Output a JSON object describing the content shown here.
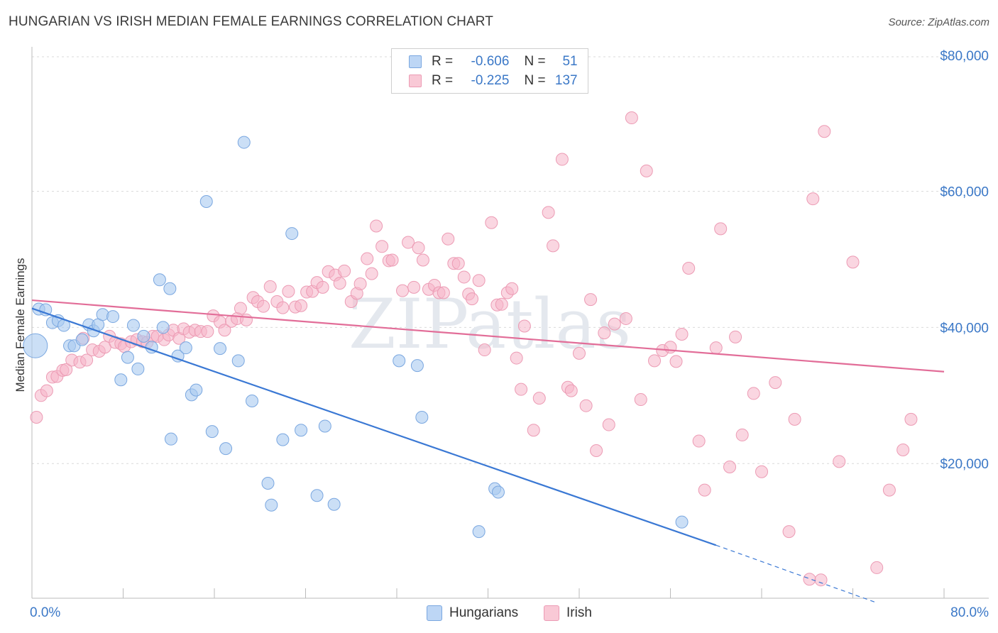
{
  "header": {
    "title": "HUNGARIAN VS IRISH MEDIAN FEMALE EARNINGS CORRELATION CHART",
    "source": "Source: ZipAtlas.com"
  },
  "watermark": "ZIPatlas",
  "legend": {
    "rows": [
      {
        "r_label": "R =",
        "r_value": "-0.606",
        "n_label": "N =",
        "n_value": "51",
        "color": "#a9c9f0"
      },
      {
        "r_label": "R =",
        "r_value": "-0.225",
        "n_label": "N =",
        "n_value": "137",
        "color": "#f5b5c8"
      }
    ]
  },
  "chart_data": {
    "type": "scatter",
    "title": "HUNGARIAN VS IRISH MEDIAN FEMALE EARNINGS CORRELATION CHART",
    "xlabel": "",
    "ylabel": "Median Female Earnings",
    "xlim": [
      0,
      80
    ],
    "ylim": [
      0,
      80000
    ],
    "x_tick_labels": [
      "0.0%",
      "80.0%"
    ],
    "y_ticks": [
      20000,
      40000,
      60000,
      80000
    ],
    "y_tick_labels": [
      "$20,000",
      "$40,000",
      "$60,000",
      "$80,000"
    ],
    "grid": true,
    "legend_position": "bottom-center",
    "series": [
      {
        "name": "Hungarians",
        "color": "#3a78d4",
        "fill": "#a9c9f0",
        "r": -0.606,
        "n": 51,
        "trend": {
          "x0": 0,
          "y0": 42800,
          "x1": 60,
          "y1": 8000,
          "dash_to_x": 74,
          "dash_to_y": -400
        },
        "points": [
          [
            0.3,
            37300,
            3
          ],
          [
            0.6,
            42700,
            1
          ],
          [
            1.2,
            42600,
            1
          ],
          [
            1.8,
            40700,
            1
          ],
          [
            2.3,
            41000,
            1
          ],
          [
            2.8,
            40300,
            1
          ],
          [
            3.3,
            37300,
            1
          ],
          [
            3.7,
            37300,
            1
          ],
          [
            4.4,
            38200,
            1
          ],
          [
            5.0,
            40400,
            1
          ],
          [
            5.4,
            39500,
            1
          ],
          [
            5.8,
            40400,
            1
          ],
          [
            6.2,
            41900,
            1
          ],
          [
            7.1,
            41600,
            1
          ],
          [
            7.8,
            32300,
            1
          ],
          [
            8.4,
            35600,
            1
          ],
          [
            8.9,
            40300,
            1
          ],
          [
            9.3,
            33900,
            1
          ],
          [
            9.8,
            38700,
            1
          ],
          [
            10.5,
            37100,
            1
          ],
          [
            11.2,
            47000,
            1
          ],
          [
            11.5,
            40000,
            1
          ],
          [
            12.1,
            45700,
            1
          ],
          [
            12.2,
            23600,
            1
          ],
          [
            12.8,
            35800,
            1
          ],
          [
            13.5,
            37000,
            1
          ],
          [
            14.0,
            30100,
            1
          ],
          [
            14.4,
            30800,
            1
          ],
          [
            15.3,
            58500,
            1
          ],
          [
            15.8,
            24700,
            1
          ],
          [
            16.5,
            36900,
            1
          ],
          [
            17.0,
            22200,
            1
          ],
          [
            18.1,
            35100,
            1
          ],
          [
            18.6,
            67200,
            1
          ],
          [
            19.3,
            29200,
            1
          ],
          [
            20.7,
            17100,
            1
          ],
          [
            21.0,
            13900,
            1
          ],
          [
            22.0,
            23500,
            1
          ],
          [
            22.8,
            53800,
            1
          ],
          [
            23.6,
            24900,
            1
          ],
          [
            25.0,
            15300,
            1
          ],
          [
            25.7,
            25500,
            1
          ],
          [
            26.5,
            14000,
            1
          ],
          [
            32.2,
            35100,
            1
          ],
          [
            33.8,
            34400,
            1
          ],
          [
            34.2,
            26800,
            1
          ],
          [
            39.2,
            10000,
            1
          ],
          [
            40.6,
            16300,
            1
          ],
          [
            40.9,
            15800,
            1
          ],
          [
            57.0,
            11400,
            1
          ]
        ]
      },
      {
        "name": "Irish",
        "color": "#e26d98",
        "fill": "#f5b5c8",
        "r": -0.225,
        "n": 137,
        "trend": {
          "x0": 0,
          "y0": 44000,
          "x1": 80,
          "y1": 33500
        },
        "points": [
          [
            0.4,
            26800
          ],
          [
            0.8,
            30000
          ],
          [
            1.3,
            30700
          ],
          [
            1.8,
            32700
          ],
          [
            2.2,
            32800
          ],
          [
            2.7,
            33700
          ],
          [
            3.0,
            33800
          ],
          [
            3.5,
            35200
          ],
          [
            4.2,
            34900
          ],
          [
            4.5,
            38400
          ],
          [
            4.8,
            35200
          ],
          [
            5.3,
            36700
          ],
          [
            5.9,
            36500
          ],
          [
            6.4,
            37100
          ],
          [
            6.8,
            38700
          ],
          [
            7.3,
            37800
          ],
          [
            7.8,
            37600
          ],
          [
            8.1,
            37200
          ],
          [
            8.7,
            37900
          ],
          [
            9.2,
            38200
          ],
          [
            9.7,
            37900
          ],
          [
            10.1,
            37800
          ],
          [
            10.6,
            38700
          ],
          [
            11.0,
            38700
          ],
          [
            11.6,
            38200
          ],
          [
            12.0,
            38900
          ],
          [
            12.4,
            39600
          ],
          [
            12.9,
            38400
          ],
          [
            13.3,
            39800
          ],
          [
            13.8,
            39300
          ],
          [
            14.3,
            39600
          ],
          [
            14.8,
            39400
          ],
          [
            15.4,
            39400
          ],
          [
            15.9,
            41700
          ],
          [
            16.5,
            40800
          ],
          [
            16.9,
            39600
          ],
          [
            17.5,
            40900
          ],
          [
            18.0,
            41300
          ],
          [
            18.3,
            42800
          ],
          [
            18.8,
            41100
          ],
          [
            19.4,
            44400
          ],
          [
            19.8,
            43800
          ],
          [
            20.3,
            43100
          ],
          [
            20.9,
            46000
          ],
          [
            21.5,
            43800
          ],
          [
            22.0,
            42900
          ],
          [
            22.5,
            45300
          ],
          [
            23.1,
            43000
          ],
          [
            23.6,
            43200
          ],
          [
            24.1,
            45200
          ],
          [
            24.6,
            45300
          ],
          [
            25.0,
            46600
          ],
          [
            25.5,
            45900
          ],
          [
            26.0,
            48200
          ],
          [
            26.6,
            47700
          ],
          [
            27.0,
            46500
          ],
          [
            27.4,
            48300
          ],
          [
            28.0,
            43800
          ],
          [
            28.5,
            45000
          ],
          [
            28.8,
            46400
          ],
          [
            29.4,
            50100
          ],
          [
            29.8,
            47900
          ],
          [
            30.2,
            54900
          ],
          [
            30.7,
            51900
          ],
          [
            31.3,
            49800
          ],
          [
            31.6,
            49900
          ],
          [
            32.5,
            45400
          ],
          [
            33.0,
            52500
          ],
          [
            33.5,
            45900
          ],
          [
            33.9,
            51700
          ],
          [
            34.3,
            49900
          ],
          [
            34.8,
            45600
          ],
          [
            35.3,
            46200
          ],
          [
            35.7,
            45100
          ],
          [
            36.1,
            45100
          ],
          [
            36.5,
            53000
          ],
          [
            37.0,
            49400
          ],
          [
            37.4,
            49400
          ],
          [
            37.9,
            47400
          ],
          [
            38.3,
            44900
          ],
          [
            38.6,
            44200
          ],
          [
            39.2,
            46900
          ],
          [
            39.7,
            36700
          ],
          [
            40.3,
            55400
          ],
          [
            40.8,
            43300
          ],
          [
            41.2,
            43400
          ],
          [
            41.7,
            45100
          ],
          [
            42.1,
            45700
          ],
          [
            42.5,
            35500
          ],
          [
            42.9,
            30900
          ],
          [
            43.2,
            40200
          ],
          [
            44.0,
            24900
          ],
          [
            44.5,
            29600
          ],
          [
            45.3,
            56900
          ],
          [
            45.7,
            52000
          ],
          [
            46.5,
            64700
          ],
          [
            47.0,
            31200
          ],
          [
            47.3,
            30700
          ],
          [
            48.0,
            36200
          ],
          [
            48.6,
            28500
          ],
          [
            49.0,
            44100
          ],
          [
            49.5,
            21900
          ],
          [
            50.2,
            39200
          ],
          [
            50.6,
            25700
          ],
          [
            51.1,
            40500
          ],
          [
            52.1,
            41300
          ],
          [
            52.6,
            70800
          ],
          [
            53.4,
            29400
          ],
          [
            53.9,
            63000
          ],
          [
            54.6,
            35100
          ],
          [
            55.3,
            36600
          ],
          [
            56.0,
            37100
          ],
          [
            56.5,
            35000
          ],
          [
            57.0,
            39000
          ],
          [
            57.6,
            48700
          ],
          [
            58.5,
            23300
          ],
          [
            59.0,
            16100
          ],
          [
            60.0,
            37000
          ],
          [
            60.4,
            54500
          ],
          [
            61.2,
            19500
          ],
          [
            61.7,
            38600
          ],
          [
            62.3,
            24200
          ],
          [
            63.3,
            30300
          ],
          [
            64.0,
            18800
          ],
          [
            65.2,
            31900
          ],
          [
            66.4,
            10000
          ],
          [
            66.9,
            26500
          ],
          [
            68.2,
            3000
          ],
          [
            68.5,
            58900
          ],
          [
            69.2,
            2900
          ],
          [
            69.5,
            68800
          ],
          [
            70.8,
            20300
          ],
          [
            72.0,
            49600
          ],
          [
            74.1,
            4700
          ],
          [
            75.2,
            16100
          ],
          [
            76.4,
            22000
          ],
          [
            77.1,
            26500
          ]
        ]
      }
    ]
  }
}
